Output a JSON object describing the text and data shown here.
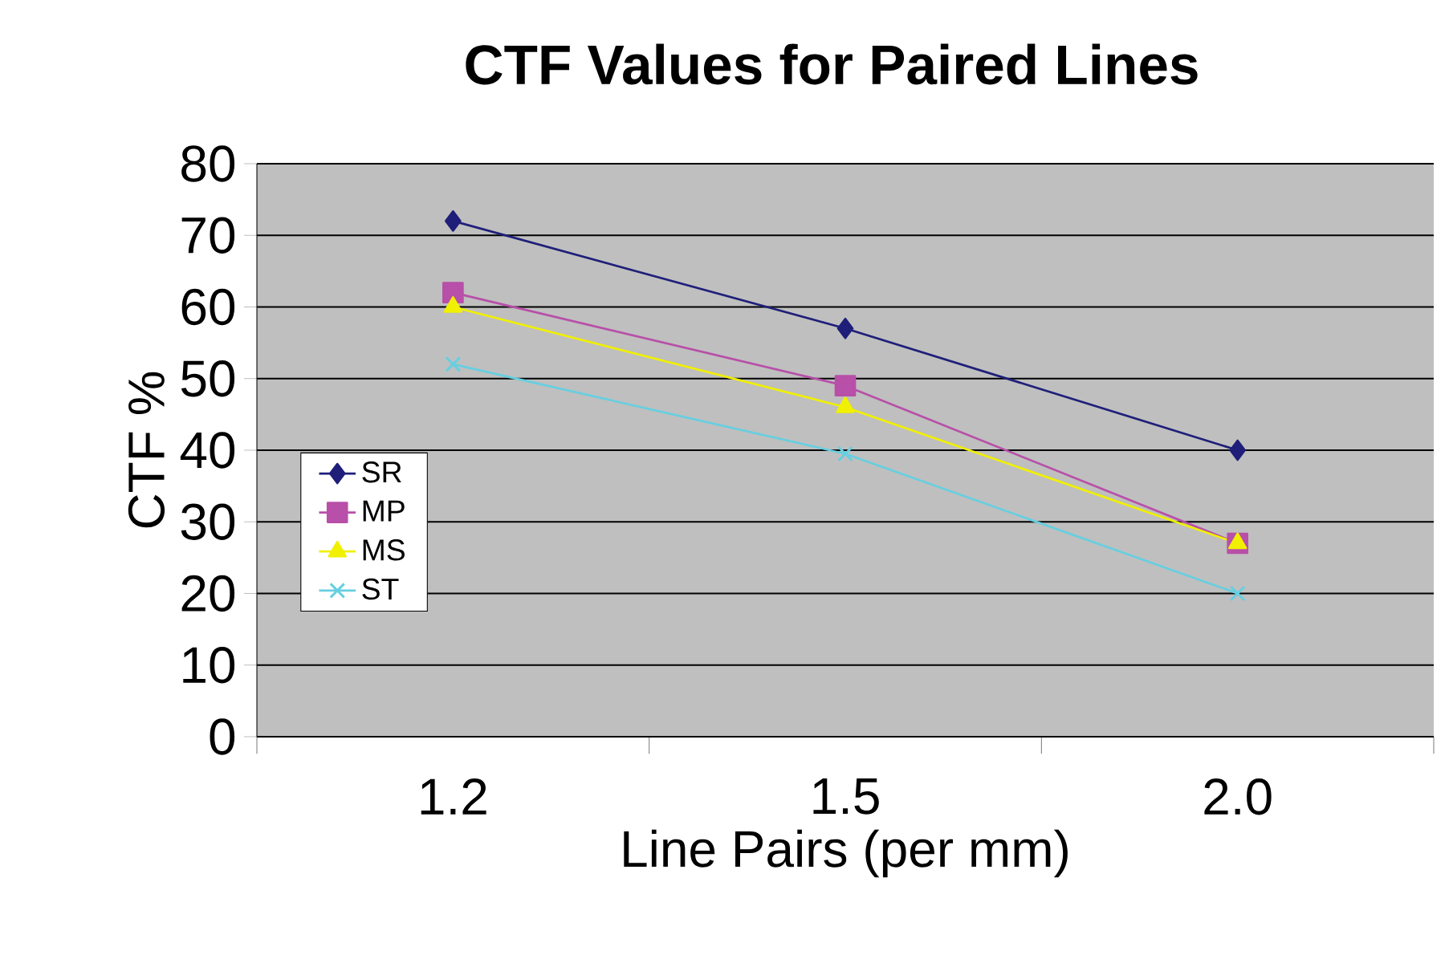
{
  "chart_data": {
    "type": "line",
    "title": "CTF Values for Paired Lines",
    "xlabel": "Line Pairs (per mm)",
    "ylabel": "CTF %",
    "categories": [
      "1.2",
      "1.5",
      "2.0"
    ],
    "series": [
      {
        "name": "SR",
        "color": "#1f1f7a",
        "marker": "diamond",
        "values": [
          72,
          57,
          40
        ]
      },
      {
        "name": "MP",
        "color": "#b84fa8",
        "marker": "square",
        "values": [
          62,
          49,
          27
        ]
      },
      {
        "name": "MS",
        "color": "#f0f000",
        "marker": "triangle",
        "values": [
          60,
          46,
          27
        ]
      },
      {
        "name": "ST",
        "color": "#66cfe0",
        "marker": "cross",
        "values": [
          52,
          39.5,
          20
        ]
      }
    ],
    "ylim": [
      0,
      80
    ],
    "yticks": [
      0,
      10,
      20,
      30,
      40,
      50,
      60,
      70,
      80
    ],
    "grid": "y",
    "legend": "left",
    "line_style": "solid"
  }
}
